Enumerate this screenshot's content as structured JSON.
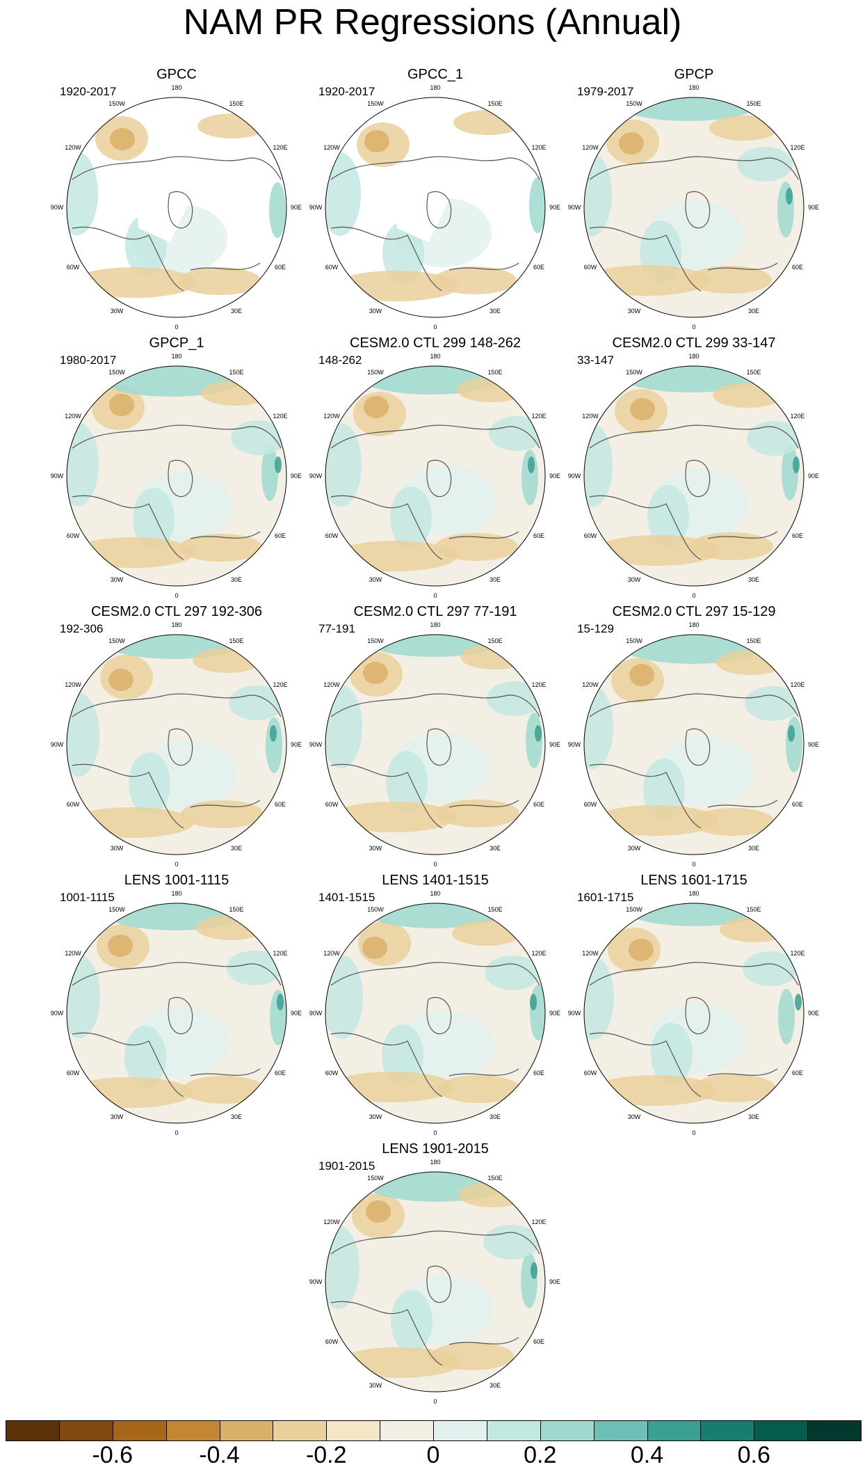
{
  "title": "NAM PR Regressions (Annual)",
  "lon_labels": {
    "n": "180",
    "nne": "150E",
    "nee": "120E",
    "e": "90E",
    "see": "60E",
    "sse": "30E",
    "s": "0",
    "ssw": "30W",
    "sww": "60W",
    "w": "90W",
    "nww": "120W",
    "nnw": "150W"
  },
  "panels": [
    {
      "title": "GPCC",
      "period": "1920-2017",
      "coverage": "land"
    },
    {
      "title": "GPCC_1",
      "period": "1920-2017",
      "coverage": "land"
    },
    {
      "title": "GPCP",
      "period": "1979-2017",
      "coverage": "global"
    },
    {
      "title": "GPCP_1",
      "period": "1980-2017",
      "coverage": "global"
    },
    {
      "title": "CESM2.0 CTL 299 148-262",
      "period": "148-262",
      "coverage": "global"
    },
    {
      "title": "CESM2.0 CTL 299 33-147",
      "period": "33-147",
      "coverage": "global"
    },
    {
      "title": "CESM2.0 CTL 297 192-306",
      "period": "192-306",
      "coverage": "global"
    },
    {
      "title": "CESM2.0 CTL 297 77-191",
      "period": "77-191",
      "coverage": "global"
    },
    {
      "title": "CESM2.0 CTL 297 15-129",
      "period": "15-129",
      "coverage": "global"
    },
    {
      "title": "LENS 1001-1115",
      "period": "1001-1115",
      "coverage": "global"
    },
    {
      "title": "LENS 1401-1515",
      "period": "1401-1515",
      "coverage": "global"
    },
    {
      "title": "LENS 1601-1715",
      "period": "1601-1715",
      "coverage": "global"
    },
    {
      "title": "LENS 1901-2015",
      "period": "1901-2015",
      "coverage": "global"
    }
  ],
  "colorbar": {
    "colors": [
      "#5c3209",
      "#83480f",
      "#a8661b",
      "#c48631",
      "#d9b068",
      "#ead09b",
      "#f4e6c6",
      "#f3efe4",
      "#e2f1ee",
      "#c3e8e2",
      "#9ed9cf",
      "#6ec0b4",
      "#3b9f92",
      "#167d6f",
      "#045c4f",
      "#02392f"
    ],
    "labels": [
      "-0.6",
      "-0.4",
      "-0.2",
      "0",
      "0.2",
      "0.4",
      "0.6"
    ]
  }
}
